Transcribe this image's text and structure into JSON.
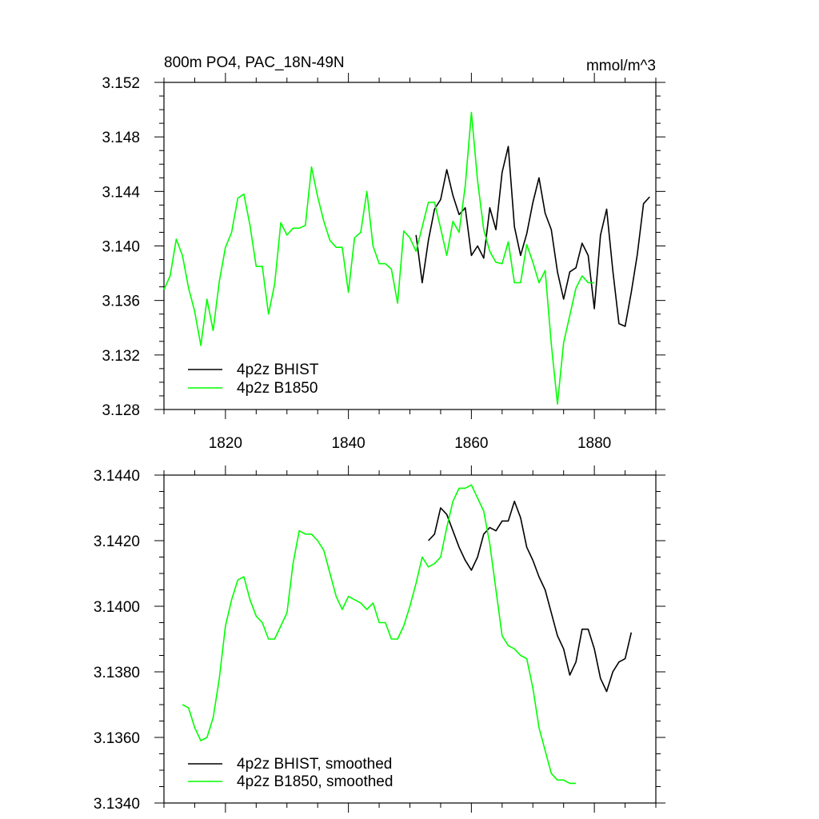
{
  "chart_data": [
    {
      "type": "line",
      "title": "800m PO4, PAC_18N-49N",
      "units": "mmol/m^3",
      "xlim": [
        1810,
        1890
      ],
      "ylim": [
        3.128,
        3.152
      ],
      "xticks": [
        1820,
        1840,
        1860,
        1880
      ],
      "xtick_labels": [
        "1820",
        "1840",
        "1860",
        "1880"
      ],
      "yticks": [
        3.128,
        3.132,
        3.136,
        3.14,
        3.144,
        3.148,
        3.152
      ],
      "ytick_labels": [
        "3.128",
        "3.132",
        "3.136",
        "3.140",
        "3.144",
        "3.148",
        "3.152"
      ],
      "legend": "bottom-left",
      "series": [
        {
          "name": "4p2z BHIST",
          "color": "#000000",
          "x": [
            1851,
            1852,
            1853,
            1854,
            1855,
            1856,
            1857,
            1858,
            1859,
            1860,
            1861,
            1862,
            1863,
            1864,
            1865,
            1866,
            1867,
            1868,
            1869,
            1870,
            1871,
            1872,
            1873,
            1874,
            1875,
            1876,
            1877,
            1878,
            1879,
            1880,
            1881,
            1882,
            1883,
            1884,
            1885,
            1886,
            1887,
            1888,
            1889
          ],
          "y": [
            3.1408,
            3.1373,
            3.1404,
            3.1427,
            3.1434,
            3.1456,
            3.1437,
            3.1423,
            3.1428,
            3.1393,
            3.14,
            3.1391,
            3.1428,
            3.1412,
            3.1454,
            3.1473,
            3.1414,
            3.1393,
            3.1409,
            3.1432,
            3.145,
            3.1424,
            3.1412,
            3.1381,
            3.1361,
            3.1381,
            3.1384,
            3.1402,
            3.1393,
            3.1354,
            3.1408,
            3.1427,
            3.1382,
            3.1343,
            3.1341,
            3.1366,
            3.1394,
            3.1431,
            3.1436
          ]
        },
        {
          "name": "4p2z B1850",
          "color": "#00ff00",
          "x": [
            1810,
            1811,
            1812,
            1813,
            1814,
            1815,
            1816,
            1817,
            1818,
            1819,
            1820,
            1821,
            1822,
            1823,
            1824,
            1825,
            1826,
            1827,
            1828,
            1829,
            1830,
            1831,
            1832,
            1833,
            1834,
            1835,
            1836,
            1837,
            1838,
            1839,
            1840,
            1841,
            1842,
            1843,
            1844,
            1845,
            1846,
            1847,
            1848,
            1849,
            1850,
            1851,
            1852,
            1853,
            1854,
            1855,
            1856,
            1857,
            1858,
            1859,
            1860,
            1861,
            1862,
            1863,
            1864,
            1865,
            1866,
            1867,
            1868,
            1869,
            1870,
            1871,
            1872,
            1873,
            1874,
            1875,
            1876,
            1877,
            1878,
            1879,
            1880
          ],
          "y": [
            3.1368,
            3.1378,
            3.1405,
            3.1393,
            3.1369,
            3.1352,
            3.1327,
            3.1361,
            3.1338,
            3.1374,
            3.1399,
            3.141,
            3.1435,
            3.1438,
            3.1415,
            3.1385,
            3.1385,
            3.135,
            3.1372,
            3.1417,
            3.1408,
            3.1413,
            3.1413,
            3.1415,
            3.1458,
            3.1436,
            3.1418,
            3.1404,
            3.1399,
            3.1399,
            3.1366,
            3.1406,
            3.141,
            3.144,
            3.14,
            3.1387,
            3.1387,
            3.1383,
            3.1358,
            3.1411,
            3.1406,
            3.1396,
            3.1414,
            3.1432,
            3.1432,
            3.1413,
            3.1393,
            3.1418,
            3.141,
            3.1444,
            3.1498,
            3.1448,
            3.1412,
            3.1396,
            3.1388,
            3.1387,
            3.1403,
            3.1373,
            3.1373,
            3.1401,
            3.1388,
            3.1373,
            3.1382,
            3.1328,
            3.1284,
            3.1329,
            3.1349,
            3.1369,
            3.1378,
            3.1373,
            3.1373
          ]
        }
      ]
    },
    {
      "type": "line",
      "title": "",
      "xlim": [
        1810,
        1890
      ],
      "ylim": [
        3.134,
        3.144
      ],
      "xticks": [
        1820,
        1840,
        1860,
        1880
      ],
      "yticks": [
        3.134,
        3.136,
        3.138,
        3.14,
        3.142,
        3.144
      ],
      "ytick_labels": [
        "3.1340",
        "3.1360",
        "3.1380",
        "3.1400",
        "3.1420",
        "3.1440"
      ],
      "legend": "bottom-left",
      "series": [
        {
          "name": "4p2z BHIST, smoothed",
          "color": "#000000",
          "x": [
            1853,
            1854,
            1855,
            1856,
            1857,
            1858,
            1859,
            1860,
            1861,
            1862,
            1863,
            1864,
            1865,
            1866,
            1867,
            1868,
            1869,
            1870,
            1871,
            1872,
            1873,
            1874,
            1875,
            1876,
            1877,
            1878,
            1879,
            1880,
            1881,
            1882,
            1883,
            1884,
            1885,
            1886
          ],
          "y": [
            3.142,
            3.1422,
            3.143,
            3.1428,
            3.1423,
            3.1418,
            3.1414,
            3.1411,
            3.1415,
            3.1422,
            3.1424,
            3.1423,
            3.1426,
            3.1426,
            3.1432,
            3.1427,
            3.1418,
            3.1414,
            3.1409,
            3.1405,
            3.1398,
            3.1391,
            3.1387,
            3.1379,
            3.1383,
            3.1393,
            3.1393,
            3.1387,
            3.1378,
            3.1374,
            3.138,
            3.1383,
            3.1384,
            3.1392
          ]
        },
        {
          "name": "4p2z B1850, smoothed",
          "color": "#00ff00",
          "x": [
            1813,
            1814,
            1815,
            1816,
            1817,
            1818,
            1819,
            1820,
            1821,
            1822,
            1823,
            1824,
            1825,
            1826,
            1827,
            1828,
            1829,
            1830,
            1831,
            1832,
            1833,
            1834,
            1835,
            1836,
            1837,
            1838,
            1839,
            1840,
            1841,
            1842,
            1843,
            1844,
            1845,
            1846,
            1847,
            1848,
            1849,
            1850,
            1851,
            1852,
            1853,
            1854,
            1855,
            1856,
            1857,
            1858,
            1859,
            1860,
            1861,
            1862,
            1863,
            1864,
            1865,
            1866,
            1867,
            1868,
            1869,
            1870,
            1871,
            1872,
            1873,
            1874,
            1875,
            1876,
            1877
          ],
          "y": [
            3.137,
            3.1369,
            3.1363,
            3.1359,
            3.136,
            3.1366,
            3.1378,
            3.1394,
            3.1402,
            3.1408,
            3.1409,
            3.1402,
            3.1397,
            3.1395,
            3.139,
            3.139,
            3.1394,
            3.1398,
            3.1413,
            3.1423,
            3.1422,
            3.1422,
            3.142,
            3.1417,
            3.141,
            3.1403,
            3.1399,
            3.1403,
            3.1402,
            3.1401,
            3.1399,
            3.1401,
            3.1395,
            3.1395,
            3.139,
            3.139,
            3.1394,
            3.14,
            3.1407,
            3.1415,
            3.1412,
            3.1413,
            3.1415,
            3.1424,
            3.1432,
            3.1436,
            3.1436,
            3.1437,
            3.1433,
            3.1429,
            3.1419,
            3.1405,
            3.1391,
            3.1388,
            3.1387,
            3.1385,
            3.1384,
            3.1375,
            3.1363,
            3.1356,
            3.1349,
            3.1347,
            3.1347,
            3.1346,
            3.1346
          ]
        }
      ]
    }
  ]
}
